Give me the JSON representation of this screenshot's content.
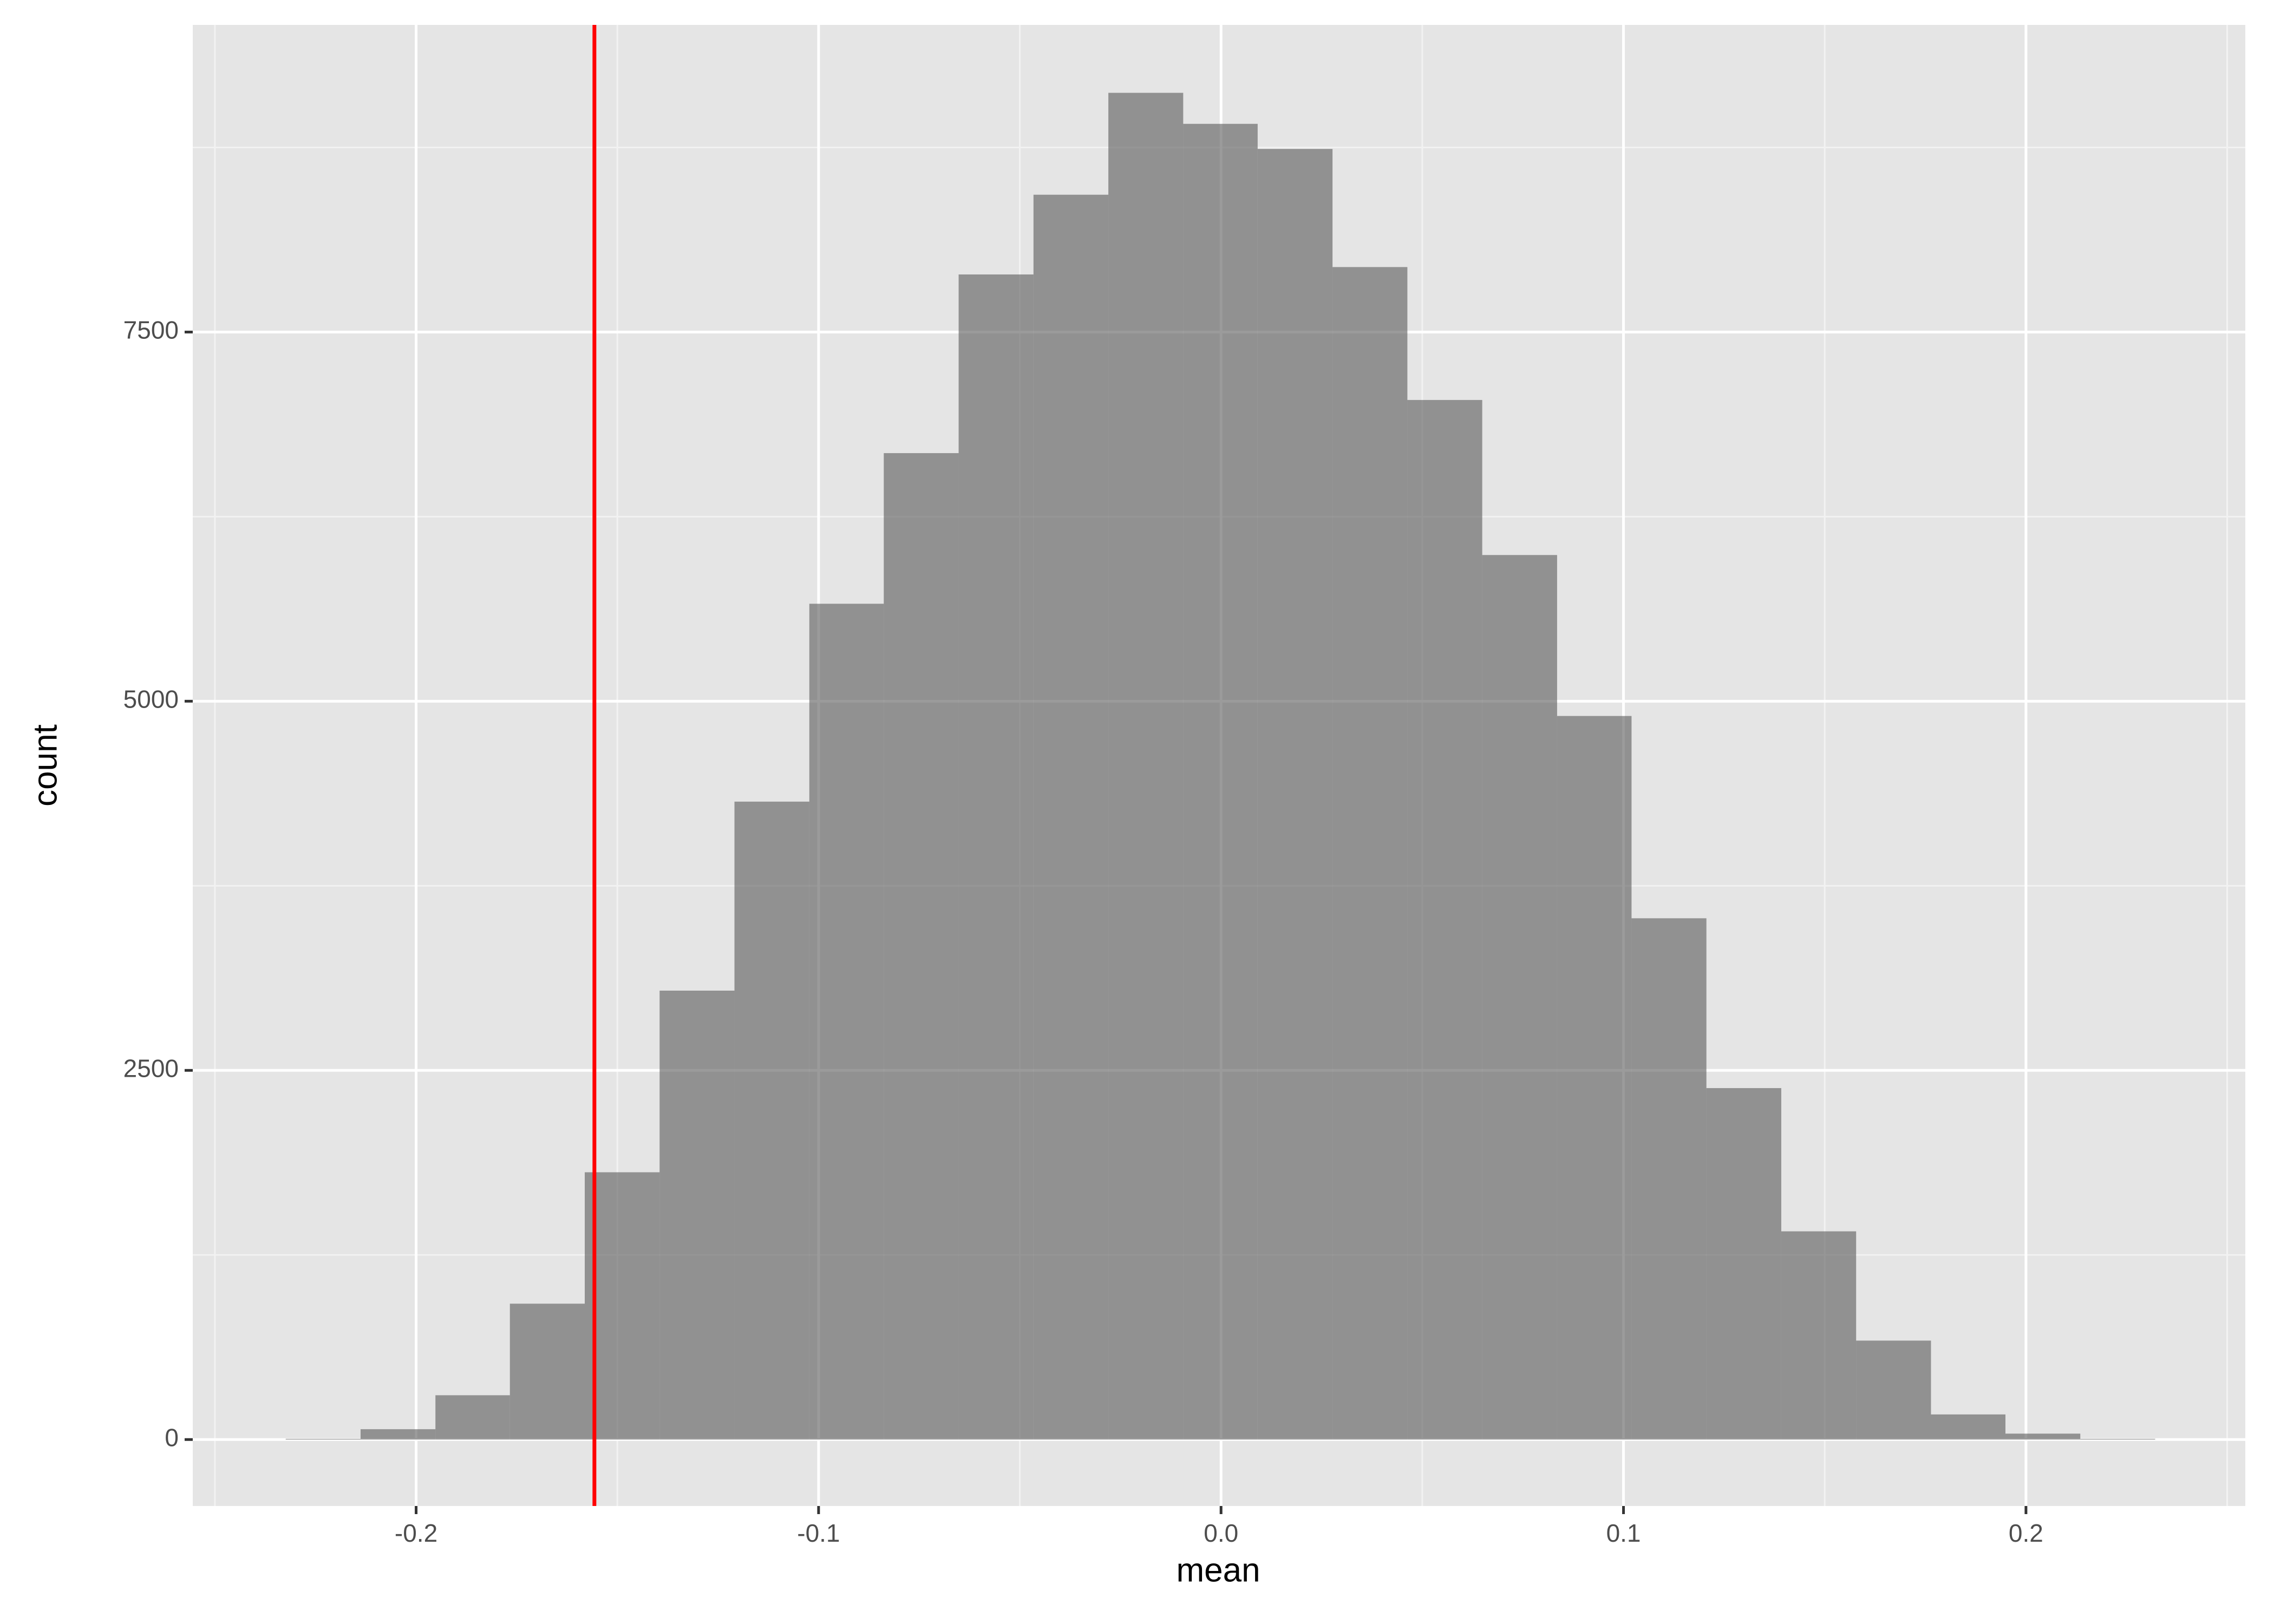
{
  "chart_data": {
    "type": "histogram",
    "x_label": "mean",
    "y_label": "count",
    "bins": [
      -0.2324,
      -0.2138,
      -0.1952,
      -0.1767,
      -0.1581,
      -0.1395,
      -0.1209,
      -0.1023,
      -0.0838,
      -0.0652,
      -0.0466,
      -0.028,
      -0.0094,
      0.0091,
      0.0277,
      0.0463,
      0.0649,
      0.0835,
      0.102,
      0.1206,
      0.1392,
      0.1578,
      0.1764,
      0.1949,
      0.2135,
      0.2321
    ],
    "values": [
      5,
      70,
      300,
      920,
      1810,
      3040,
      4320,
      5660,
      6680,
      7890,
      8430,
      9120,
      8910,
      8740,
      7940,
      7040,
      5990,
      4900,
      3530,
      2380,
      1410,
      670,
      170,
      40,
      5
    ],
    "color": "#595959",
    "alpha": 0.6,
    "vline": {
      "x": -0.1557,
      "color": "#ff0000"
    },
    "xlim": [
      -0.2555,
      0.2545
    ],
    "ylim": [
      -450,
      9580
    ],
    "xticks": [
      -0.2,
      -0.1,
      {
        "value": 0,
        "label": "0.0"
      },
      0.1,
      0.2
    ],
    "yticks": [
      0,
      2500,
      5000,
      7500
    ],
    "x_minor_grid": [
      -0.25,
      -0.15,
      -0.05,
      0.05,
      0.15,
      0.25
    ],
    "y_minor_grid": [
      1250,
      3750,
      6250,
      8750
    ],
    "grid": true
  }
}
